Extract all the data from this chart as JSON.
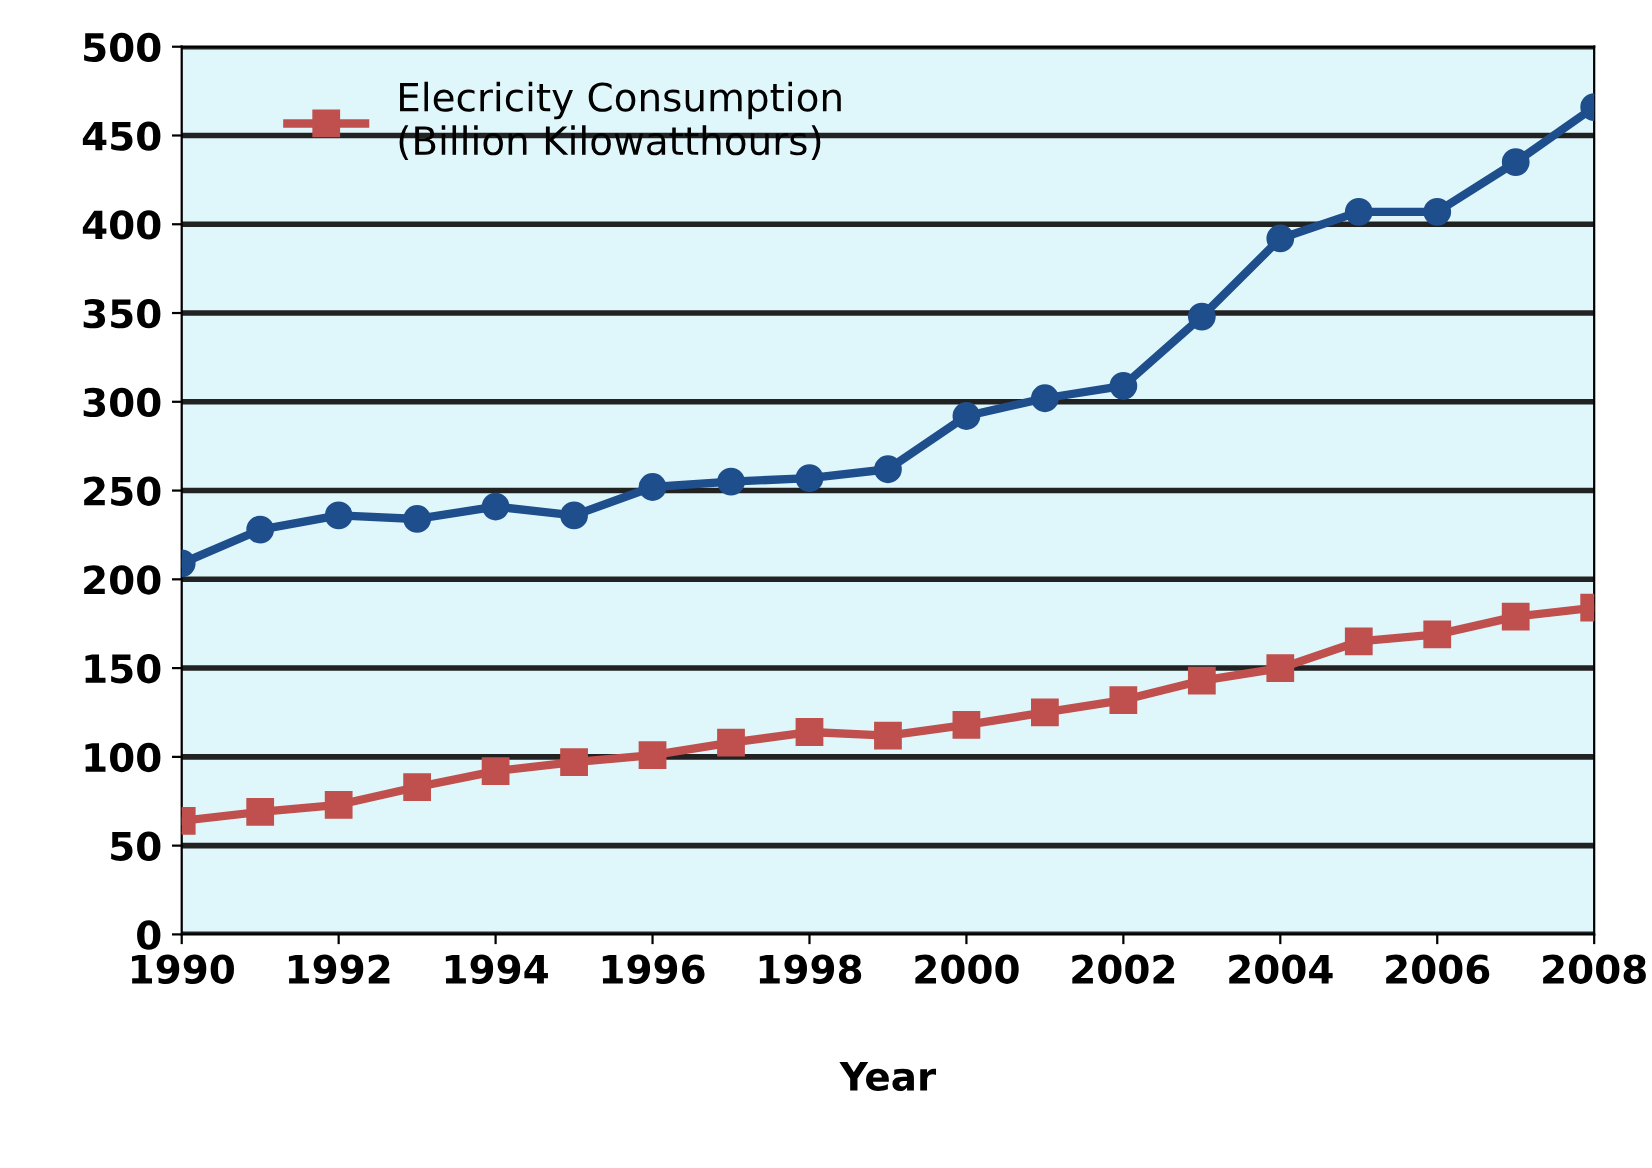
{
  "chart_data": {
    "type": "line",
    "xlabel": "Year",
    "x": [
      1990,
      1991,
      1992,
      1993,
      1994,
      1995,
      1996,
      1997,
      1998,
      1999,
      2000,
      2001,
      2002,
      2003,
      2004,
      2005,
      2006,
      2007,
      2008
    ],
    "xlim": [
      1990,
      2008
    ],
    "xticks": [
      1990,
      1992,
      1994,
      1996,
      1998,
      2000,
      2002,
      2004,
      2006,
      2008
    ],
    "ylim": [
      0,
      500
    ],
    "yticks": [
      0,
      50,
      100,
      150,
      200,
      250,
      300,
      350,
      400,
      450,
      500
    ],
    "grid": "y",
    "legend": "top left",
    "series": [
      {
        "color": "#1f4e8c",
        "marker": "circle",
        "values": [
          209,
          228,
          236,
          234,
          241,
          236,
          252,
          255,
          257,
          262,
          292,
          302,
          309,
          348,
          392,
          407,
          407,
          435,
          466
        ]
      },
      {
        "name": "Elecricity Consumption\n(Billion Kilowatthours)",
        "color": "#c0504d",
        "marker": "square",
        "values": [
          64,
          69,
          73,
          83,
          92,
          97,
          101,
          108,
          114,
          112,
          118,
          125,
          132,
          143,
          150,
          165,
          169,
          179,
          184
        ]
      }
    ]
  }
}
